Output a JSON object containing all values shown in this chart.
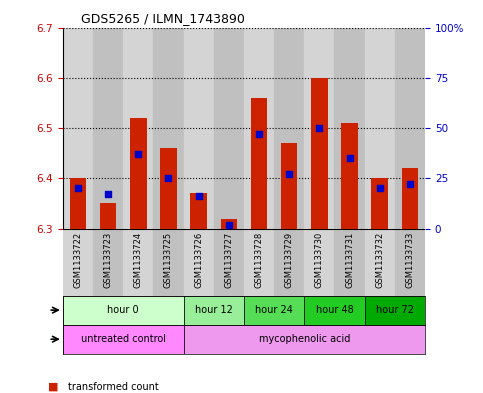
{
  "title": "GDS5265 / ILMN_1743890",
  "samples": [
    "GSM1133722",
    "GSM1133723",
    "GSM1133724",
    "GSM1133725",
    "GSM1133726",
    "GSM1133727",
    "GSM1133728",
    "GSM1133729",
    "GSM1133730",
    "GSM1133731",
    "GSM1133732",
    "GSM1133733"
  ],
  "transformed_count": [
    6.4,
    6.35,
    6.52,
    6.46,
    6.37,
    6.32,
    6.56,
    6.47,
    6.6,
    6.51,
    6.4,
    6.42
  ],
  "percentile_rank": [
    20,
    17,
    37,
    25,
    16,
    2,
    47,
    27,
    50,
    35,
    20,
    22
  ],
  "ylim": [
    6.3,
    6.7
  ],
  "yticks": [
    6.3,
    6.4,
    6.5,
    6.6,
    6.7
  ],
  "y2lim": [
    0,
    100
  ],
  "y2ticks": [
    0,
    25,
    50,
    75,
    100
  ],
  "y2ticklabels": [
    "0",
    "25",
    "50",
    "75",
    "100%"
  ],
  "bar_color": "#cc2200",
  "blue_color": "#0000cc",
  "col_bg_even": "#d4d4d4",
  "col_bg_odd": "#c0c0c0",
  "plot_bg": "#ffffff",
  "time_groups": [
    {
      "label": "hour 0",
      "start": 0,
      "end": 4,
      "color": "#ccffcc"
    },
    {
      "label": "hour 12",
      "start": 4,
      "end": 6,
      "color": "#99ee99"
    },
    {
      "label": "hour 24",
      "start": 6,
      "end": 8,
      "color": "#55dd55"
    },
    {
      "label": "hour 48",
      "start": 8,
      "end": 10,
      "color": "#22cc22"
    },
    {
      "label": "hour 72",
      "start": 10,
      "end": 12,
      "color": "#00aa00"
    }
  ],
  "agent_groups": [
    {
      "label": "untreated control",
      "start": 0,
      "end": 4,
      "color": "#ff88ff"
    },
    {
      "label": "mycophenolic acid",
      "start": 4,
      "end": 12,
      "color": "#ee99ee"
    }
  ],
  "bar_width": 0.55,
  "yaxis_color": "#cc0000",
  "y2axis_color": "#0000cc",
  "title_fontsize": 9,
  "tick_fontsize": 7.5,
  "label_fontsize": 8
}
